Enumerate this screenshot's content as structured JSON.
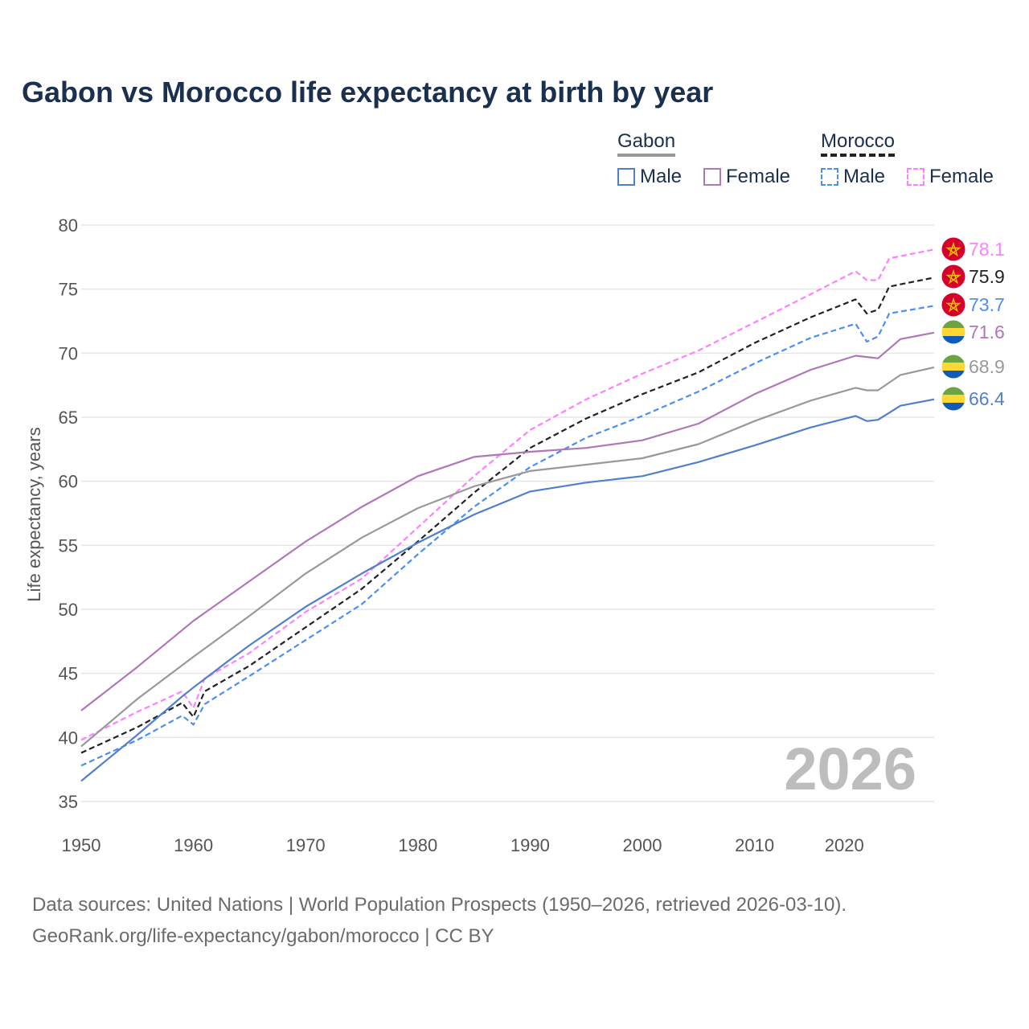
{
  "chart_data": {
    "type": "line",
    "title": "Gabon vs Morocco life expectancy at birth by year",
    "xlabel": "",
    "ylabel": "Life expectancy, years",
    "xlim": [
      1950,
      2026
    ],
    "ylim": [
      35,
      80
    ],
    "x_ticks": [
      "1950",
      "1960",
      "1970",
      "1980",
      "1990",
      "2000",
      "2010",
      "2020"
    ],
    "y_ticks": [
      "35",
      "40",
      "45",
      "50",
      "55",
      "60",
      "65",
      "70",
      "75",
      "80"
    ],
    "grid": true,
    "watermark_year": "2026",
    "legend": {
      "placement": "top-right",
      "groups": [
        {
          "country": "Gabon",
          "items": [
            "Male",
            "Female"
          ]
        },
        {
          "country": "Morocco",
          "items": [
            "Male",
            "Female"
          ]
        }
      ]
    },
    "series": [
      {
        "name": "Morocco Female",
        "country": "Morocco",
        "color": "#ff80ff",
        "dashed": true,
        "end_label": "78.1",
        "x": [
          1950,
          1955,
          1959,
          1960,
          1961,
          1965,
          1970,
          1975,
          1980,
          1985,
          1990,
          1995,
          2000,
          2005,
          2010,
          2015,
          2019,
          2020,
          2021,
          2022,
          2026
        ],
        "y": [
          39.8,
          42.0,
          43.6,
          42.3,
          44.6,
          46.6,
          49.8,
          52.4,
          56.4,
          60.4,
          64.0,
          66.4,
          68.4,
          70.2,
          72.4,
          74.6,
          76.4,
          75.7,
          75.7,
          77.4,
          78.1
        ]
      },
      {
        "name": "Morocco",
        "country": "Morocco",
        "color": "#222222",
        "dashed": true,
        "end_label": "75.9",
        "x": [
          1950,
          1955,
          1959,
          1960,
          1961,
          1965,
          1970,
          1975,
          1980,
          1985,
          1990,
          1995,
          2000,
          2005,
          2010,
          2015,
          2019,
          2020,
          2021,
          2022,
          2026
        ],
        "y": [
          38.8,
          40.8,
          42.7,
          41.6,
          43.6,
          45.6,
          48.6,
          51.6,
          55.3,
          59.1,
          62.6,
          64.9,
          66.8,
          68.5,
          70.8,
          72.8,
          74.2,
          73.1,
          73.4,
          75.2,
          75.9
        ]
      },
      {
        "name": "Morocco Male",
        "country": "Morocco",
        "color": "#4a8ff5",
        "dashed": true,
        "end_label": "73.7",
        "x": [
          1950,
          1955,
          1959,
          1960,
          1961,
          1965,
          1970,
          1975,
          1980,
          1985,
          1990,
          1995,
          2000,
          2005,
          2010,
          2015,
          2019,
          2020,
          2021,
          2022,
          2026
        ],
        "y": [
          37.8,
          39.8,
          41.7,
          41.0,
          42.6,
          44.8,
          47.6,
          50.4,
          54.3,
          58.0,
          61.1,
          63.4,
          65.1,
          67.0,
          69.2,
          71.2,
          72.3,
          70.9,
          71.3,
          73.1,
          73.7
        ]
      },
      {
        "name": "Gabon Female",
        "country": "Gabon",
        "color": "#b077b8",
        "dashed": false,
        "end_label": "71.6",
        "x": [
          1950,
          1955,
          1960,
          1965,
          1970,
          1975,
          1980,
          1985,
          1990,
          1995,
          2000,
          2005,
          2010,
          2015,
          2019,
          2020,
          2021,
          2023,
          2026
        ],
        "y": [
          42.1,
          45.5,
          49.1,
          52.2,
          55.3,
          58.0,
          60.4,
          61.9,
          62.3,
          62.6,
          63.2,
          64.5,
          66.8,
          68.7,
          69.8,
          69.7,
          69.6,
          71.1,
          71.6
        ]
      },
      {
        "name": "Gabon",
        "country": "Gabon",
        "color": "#999999",
        "dashed": false,
        "end_label": "68.9",
        "x": [
          1950,
          1955,
          1960,
          1965,
          1970,
          1975,
          1980,
          1985,
          1990,
          1995,
          2000,
          2005,
          2010,
          2015,
          2019,
          2020,
          2021,
          2023,
          2026
        ],
        "y": [
          39.3,
          43.0,
          46.3,
          49.5,
          52.8,
          55.6,
          57.9,
          59.6,
          60.8,
          61.3,
          61.8,
          62.9,
          64.7,
          66.3,
          67.3,
          67.1,
          67.1,
          68.3,
          68.9
        ]
      },
      {
        "name": "Gabon Male",
        "country": "Gabon",
        "color": "#5080cc",
        "dashed": false,
        "end_label": "66.4",
        "x": [
          1950,
          1955,
          1959,
          1960,
          1963,
          1965,
          1970,
          1975,
          1980,
          1985,
          1990,
          1995,
          2000,
          2005,
          2010,
          2015,
          2019,
          2020,
          2021,
          2023,
          2026
        ],
        "y": [
          36.6,
          40.2,
          43.2,
          43.9,
          45.9,
          47.2,
          50.2,
          52.8,
          55.2,
          57.4,
          59.2,
          59.9,
          60.4,
          61.5,
          62.8,
          64.2,
          65.1,
          64.7,
          64.8,
          65.9,
          66.4
        ]
      }
    ]
  },
  "footer": {
    "line1": "Data sources: United Nations | World Population Prospects (1950–2026, retrieved 2026-03-10).",
    "line2": "GeoRank.org/life-expectancy/gabon/morocco | CC BY"
  }
}
